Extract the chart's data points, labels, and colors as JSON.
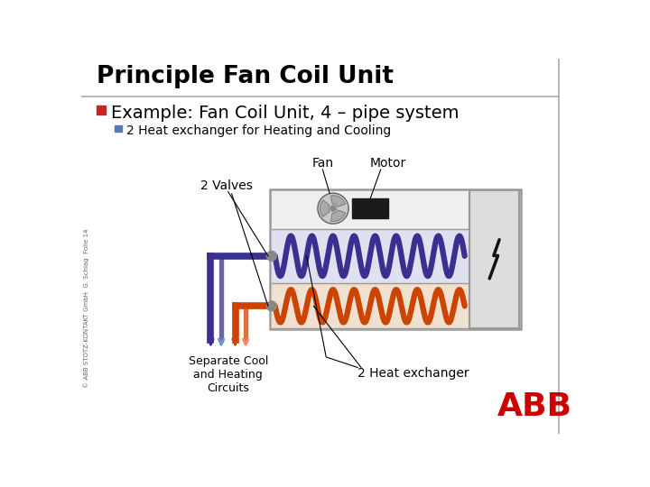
{
  "title": "Principle Fan Coil Unit",
  "bullet1": "Example: Fan Coil Unit, 4 – pipe system",
  "bullet2": "2 Heat exchanger for Heating and Cooling",
  "label_fan": "Fan",
  "label_motor": "Motor",
  "label_valves": "2 Valves",
  "label_separate": "Separate Cool\nand Heating\nCircuits",
  "label_exchanger": "2 Heat exchanger",
  "copyright": "© ABB STOTZ-KONTAKT GmbH  G. Schlag  Folie 14",
  "bg_color": "#ffffff",
  "title_color": "#000000",
  "blue_pipe_color": "#3a3090",
  "orange_pipe_color": "#cc4400",
  "box_bg": "#e8e8e8",
  "box_border": "#999999",
  "abb_red": "#cc0000",
  "bullet1_color": "#cc2222",
  "bullet2_color": "#5577bb"
}
